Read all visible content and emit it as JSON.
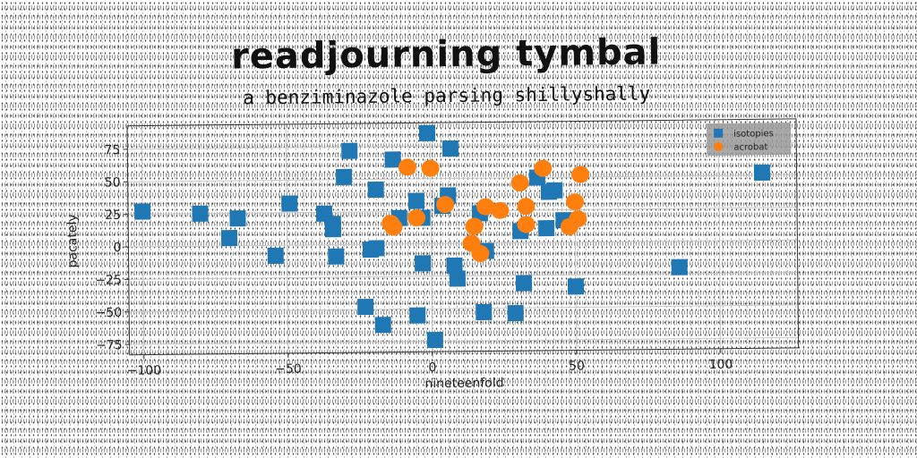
{
  "chart_data": {
    "type": "scatter",
    "title": "readjourning tymbal",
    "subtitle": "a benziminazole parsing shillyshally",
    "xlabel": "nineteenfold",
    "ylabel": "pacately",
    "xlim": [
      -105,
      127
    ],
    "ylim": [
      -83,
      93
    ],
    "xticks": [
      -100,
      -50,
      0,
      50,
      100
    ],
    "yticks": [
      -75,
      -50,
      -25,
      0,
      25,
      50,
      75
    ],
    "xtick_labels": [
      "−100",
      "−50",
      "0",
      "50",
      "100"
    ],
    "ytick_labels": [
      "−75",
      "−50",
      "−25",
      "0",
      "25",
      "50",
      "75"
    ],
    "grid": true,
    "legend_position": "top-right",
    "series": [
      {
        "name": "isotopies",
        "marker": "square",
        "color": "#1f77b4",
        "points": [
          [
            -100,
            27
          ],
          [
            -80,
            25
          ],
          [
            -70,
            6
          ],
          [
            -67,
            21
          ],
          [
            -54,
            -8
          ],
          [
            -49,
            32
          ],
          [
            -37,
            24
          ],
          [
            -34,
            16
          ],
          [
            -34,
            12
          ],
          [
            -33,
            -9
          ],
          [
            -30,
            52
          ],
          [
            -28,
            72
          ],
          [
            -21,
            -4
          ],
          [
            -19,
            -3
          ],
          [
            -19,
            42
          ],
          [
            -13,
            65
          ],
          [
            -11,
            20
          ],
          [
            -5,
            33
          ],
          [
            -3,
            20
          ],
          [
            -3,
            -15
          ],
          [
            -5,
            -55
          ],
          [
            -1,
            85
          ],
          [
            1,
            -74
          ],
          [
            4,
            29
          ],
          [
            6,
            37
          ],
          [
            7,
            73
          ],
          [
            8,
            -17
          ],
          [
            9,
            -27
          ],
          [
            -23,
            -48
          ],
          [
            -17,
            -62
          ],
          [
            17,
            23
          ],
          [
            19,
            -6
          ],
          [
            18,
            -53
          ],
          [
            29,
            -54
          ],
          [
            31,
            9
          ],
          [
            32,
            -31
          ],
          [
            37,
            50
          ],
          [
            40,
            11
          ],
          [
            41,
            39
          ],
          [
            43,
            40
          ],
          [
            46,
            17
          ],
          [
            50,
            -34
          ],
          [
            86,
            -20
          ],
          [
            115,
            52
          ]
        ]
      },
      {
        "name": "acrobat",
        "marker": "circle",
        "color": "#ff7f0e",
        "points": [
          [
            -14,
            16
          ],
          [
            -13,
            13
          ],
          [
            -8,
            59
          ],
          [
            -5,
            20
          ],
          [
            0,
            58
          ],
          [
            5,
            30
          ],
          [
            14,
            0
          ],
          [
            15,
            13
          ],
          [
            17,
            -8
          ],
          [
            19,
            28
          ],
          [
            24,
            25
          ],
          [
            31,
            46
          ],
          [
            33,
            28
          ],
          [
            33,
            14
          ],
          [
            39,
            57
          ],
          [
            48,
            12
          ],
          [
            50,
            31
          ],
          [
            51,
            18
          ],
          [
            52,
            52
          ]
        ]
      }
    ]
  }
}
